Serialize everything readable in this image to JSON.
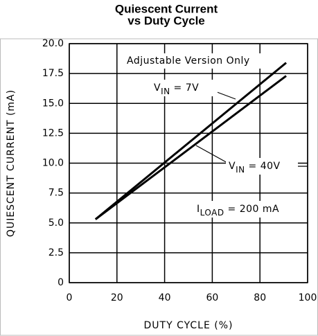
{
  "chart_data": {
    "type": "line",
    "title": [
      "Quiescent Current",
      "vs Duty Cycle"
    ],
    "xlabel": "DUTY CYCLE (%)",
    "ylabel": "QUIESCENT CURRENT (mA)",
    "x": [
      11,
      91
    ],
    "series": [
      {
        "name": "VIN = 7V",
        "color": "#000000",
        "values": [
          5.3,
          18.4
        ]
      },
      {
        "name": "VIN = 40V",
        "color": "#000000",
        "values": [
          5.3,
          17.3
        ]
      }
    ],
    "annotations": [
      {
        "parts": [
          "Adjustable Version Only"
        ]
      },
      {
        "parts": [
          "V",
          "IN",
          " = 7V"
        ]
      },
      {
        "parts": [
          "V",
          "IN",
          " = 40V"
        ]
      },
      {
        "parts": [
          "I",
          "LOAD",
          " = 200 mA"
        ]
      }
    ],
    "xlim": [
      0,
      100
    ],
    "xticks": [
      0,
      20,
      40,
      60,
      80,
      100
    ],
    "ylim": [
      0,
      20
    ],
    "yticks": [
      0,
      2.5,
      {
        "value": 5,
        "label": "5.0"
      },
      7.5,
      {
        "value": 10,
        "label": "10.0"
      },
      12.5,
      {
        "value": 15,
        "label": "15.0"
      },
      17.5,
      {
        "value": 20,
        "label": "20.0"
      }
    ],
    "grid": true
  }
}
